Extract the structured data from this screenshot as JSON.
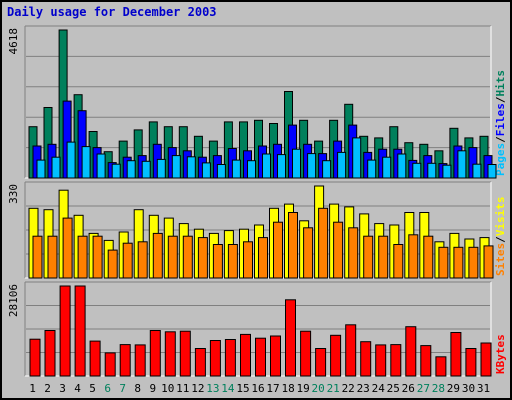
{
  "title": "Daily usage for December 2003",
  "colors": {
    "background": "#c0c0c0",
    "hits": "#00805c",
    "files": "#0000ff",
    "pages": "#00c0ff",
    "visits": "#ffff00",
    "sites": "#ff8000",
    "kbytes": "#ff0000",
    "weekend_day": "#00805c",
    "weekday": "#000000",
    "title": "#0000cc"
  },
  "chart_data": [
    {
      "type": "bar",
      "panel": "hits-files-pages",
      "max_label": "4618",
      "ylim": [
        0,
        4618
      ],
      "side_labels": [
        "Pages",
        "/",
        "Files",
        "/",
        "Hits"
      ],
      "categories": [
        "1",
        "2",
        "3",
        "4",
        "5",
        "6",
        "7",
        "8",
        "9",
        "10",
        "11",
        "12",
        "13",
        "14",
        "15",
        "16",
        "17",
        "18",
        "19",
        "20",
        "21",
        "22",
        "23",
        "24",
        "25",
        "26",
        "27",
        "28",
        "29",
        "30",
        "31"
      ],
      "series": [
        {
          "name": "Hits",
          "values": [
            1600,
            2200,
            4618,
            2600,
            1450,
            820,
            1150,
            1500,
            1750,
            1600,
            1600,
            1300,
            1150,
            1750,
            1750,
            1800,
            1700,
            2700,
            1800,
            1150,
            1800,
            2300,
            1300,
            1250,
            1600,
            1100,
            1050,
            850,
            1550,
            1250,
            1300
          ]
        },
        {
          "name": "Files",
          "values": [
            1000,
            1050,
            2400,
            2100,
            950,
            480,
            650,
            700,
            1050,
            950,
            850,
            650,
            700,
            920,
            850,
            1000,
            1050,
            1650,
            1050,
            760,
            1150,
            1650,
            800,
            900,
            900,
            550,
            700,
            450,
            1000,
            950,
            700
          ]
        },
        {
          "name": "Pages",
          "values": [
            560,
            650,
            1120,
            980,
            750,
            430,
            540,
            520,
            580,
            700,
            660,
            470,
            420,
            560,
            540,
            750,
            730,
            900,
            760,
            540,
            800,
            1250,
            560,
            650,
            750,
            460,
            460,
            400,
            850,
            430,
            420
          ]
        }
      ]
    },
    {
      "type": "bar",
      "panel": "visits-sites",
      "max_label": "330",
      "ylim": [
        0,
        330
      ],
      "side_labels": [
        "Sites",
        "/",
        "Visits"
      ],
      "categories": [
        "1",
        "2",
        "3",
        "4",
        "5",
        "6",
        "7",
        "8",
        "9",
        "10",
        "11",
        "12",
        "13",
        "14",
        "15",
        "16",
        "17",
        "18",
        "19",
        "20",
        "21",
        "22",
        "23",
        "24",
        "25",
        "26",
        "27",
        "28",
        "29",
        "30",
        "31"
      ],
      "series": [
        {
          "name": "Visits",
          "values": [
            250,
            245,
            315,
            225,
            160,
            135,
            165,
            245,
            225,
            215,
            195,
            175,
            160,
            170,
            175,
            190,
            250,
            265,
            205,
            330,
            265,
            255,
            230,
            195,
            190,
            235,
            235,
            130,
            160,
            140,
            145
          ]
        },
        {
          "name": "Sites",
          "values": [
            150,
            150,
            215,
            150,
            150,
            100,
            125,
            130,
            160,
            150,
            150,
            145,
            120,
            120,
            130,
            145,
            200,
            235,
            180,
            250,
            200,
            180,
            150,
            150,
            120,
            155,
            150,
            110,
            110,
            110,
            115
          ]
        }
      ]
    },
    {
      "type": "bar",
      "panel": "kbytes",
      "max_label": "28106",
      "ylim": [
        0,
        28106
      ],
      "side_labels": [
        "KBytes"
      ],
      "categories": [
        "1",
        "2",
        "3",
        "4",
        "5",
        "6",
        "7",
        "8",
        "9",
        "10",
        "11",
        "12",
        "13",
        "14",
        "15",
        "16",
        "17",
        "18",
        "19",
        "20",
        "21",
        "22",
        "23",
        "24",
        "25",
        "26",
        "27",
        "28",
        "29",
        "30",
        "31"
      ],
      "series": [
        {
          "name": "KBytes",
          "values": [
            11500,
            14200,
            28106,
            28106,
            10900,
            7200,
            9800,
            9700,
            14200,
            13800,
            14000,
            8600,
            11100,
            11400,
            13000,
            11800,
            12500,
            23800,
            14000,
            8600,
            12700,
            16000,
            10700,
            9700,
            9800,
            15400,
            9500,
            6000,
            13600,
            8600,
            10300
          ]
        }
      ]
    }
  ],
  "weekend_days": [
    6,
    7,
    13,
    14,
    20,
    21,
    27,
    28
  ]
}
